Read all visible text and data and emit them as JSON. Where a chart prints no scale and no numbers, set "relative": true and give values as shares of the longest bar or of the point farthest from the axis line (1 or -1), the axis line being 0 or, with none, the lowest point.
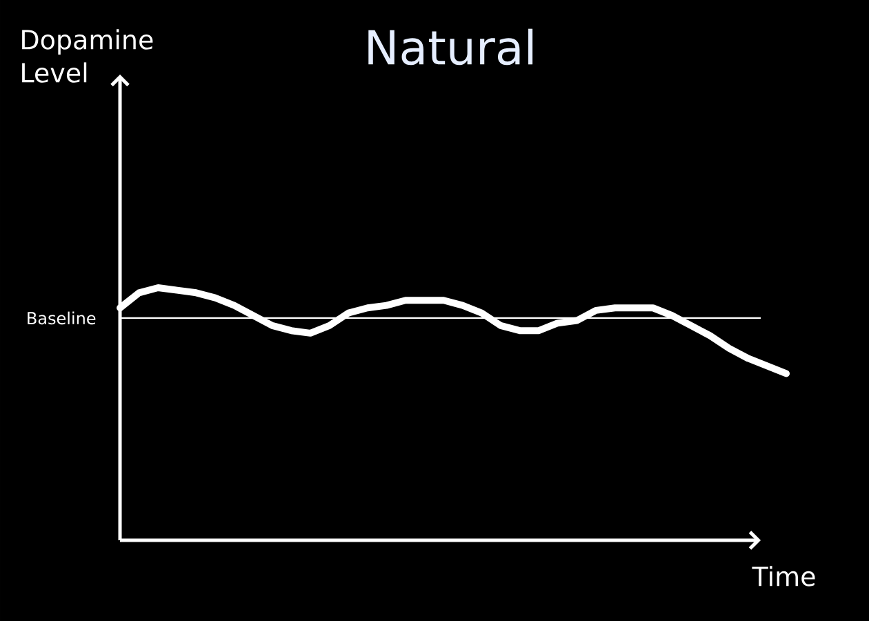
{
  "chart_data": {
    "type": "line",
    "title": "Natural",
    "xlabel": "Time",
    "annotations": [
      "Dopamine Level"
    ],
    "categories": [
      null,
      null,
      null,
      null,
      null,
      null,
      null,
      null,
      null,
      null,
      null,
      null,
      null,
      null,
      null,
      null,
      null,
      null,
      null,
      null,
      null,
      null,
      null,
      null,
      null,
      null,
      null,
      null,
      null,
      null,
      null,
      null,
      null,
      null,
      null,
      null
    ],
    "series": [
      {
        "color": "#ffffff",
        "values": [
          0.92,
          0.98,
          1.0,
          0.99,
          0.98,
          0.96,
          0.93,
          0.89,
          0.85,
          0.83,
          0.82,
          0.85,
          0.9,
          0.92,
          0.93,
          0.95,
          0.95,
          0.95,
          0.93,
          0.9,
          0.85,
          0.83,
          0.83,
          0.86,
          0.87,
          0.91,
          0.92,
          0.92,
          0.92,
          0.89,
          0.85,
          0.81,
          0.76,
          0.72,
          0.69,
          0.66
        ]
      }
    ],
    "relative": true,
    "ref_lines": [
      {
        "axis": "y",
        "value": 0.88,
        "label": "Baseline",
        "color": "#ffffff"
      }
    ],
    "marker": "none"
  }
}
